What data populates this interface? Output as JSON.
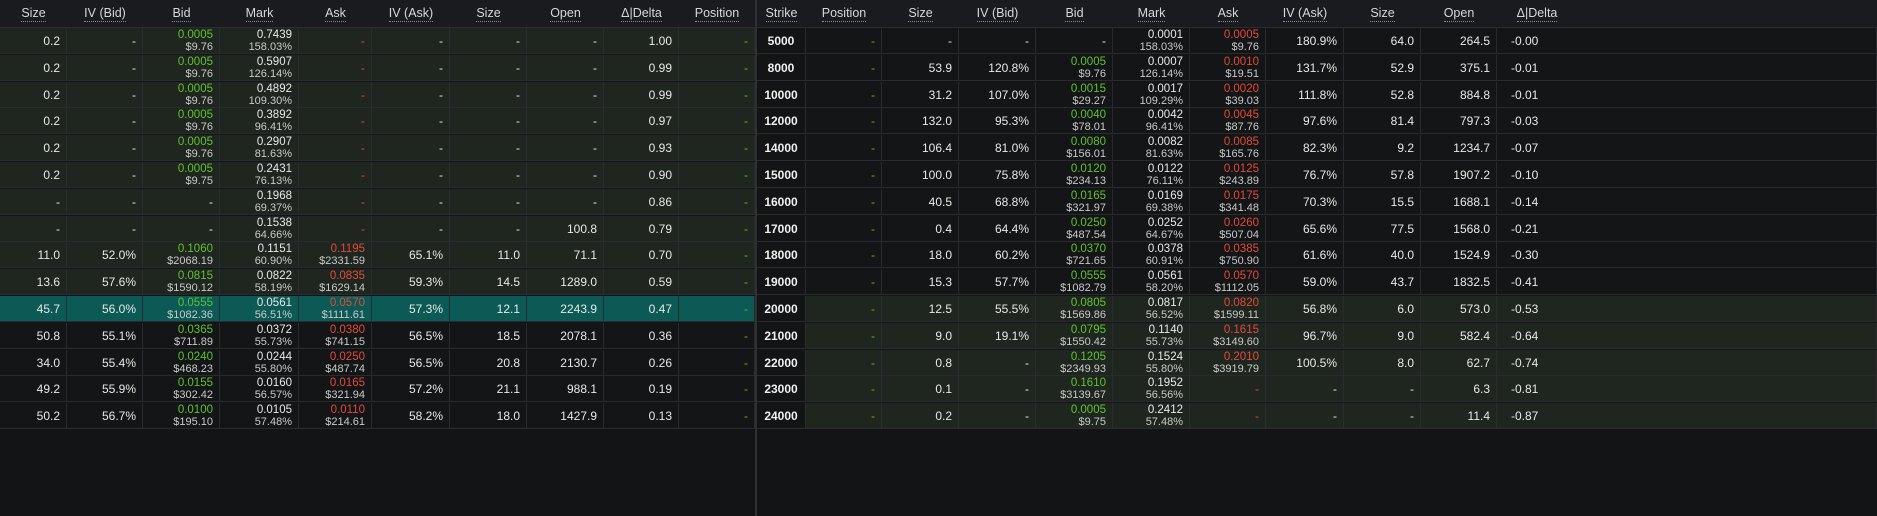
{
  "calls_headers": [
    "Size",
    "IV (Bid)",
    "Bid",
    "Mark",
    "Ask",
    "IV (Ask)",
    "Size",
    "Open",
    "Δ|Delta",
    "Position"
  ],
  "strike_header": "Strike",
  "puts_headers": [
    "Position",
    "Size",
    "IV (Bid)",
    "Bid",
    "Mark",
    "Ask",
    "IV (Ask)",
    "Size",
    "Open",
    "Δ|Delta"
  ],
  "rows": [
    {
      "strike": "5000",
      "calls": {
        "size": "0.2",
        "iv_bid": "-",
        "bid": [
          "0.0005",
          "$9.76"
        ],
        "mark": [
          "0.7439",
          "158.03%"
        ],
        "ask": [
          "-",
          ""
        ],
        "iv_ask": "-",
        "size2": "-",
        "open": "-",
        "delta": "1.00",
        "position": "-"
      },
      "puts": {
        "position": "-",
        "size": "-",
        "iv_bid": "-",
        "bid": [
          "-",
          ""
        ],
        "mark": [
          "0.0001",
          "158.03%"
        ],
        "ask": [
          "0.0005",
          "$9.76"
        ],
        "iv_ask": "180.9%",
        "size2": "64.0",
        "open": "264.5",
        "delta": "-0.00"
      }
    },
    {
      "strike": "8000",
      "calls": {
        "size": "0.2",
        "iv_bid": "-",
        "bid": [
          "0.0005",
          "$9.76"
        ],
        "mark": [
          "0.5907",
          "126.14%"
        ],
        "ask": [
          "-",
          ""
        ],
        "iv_ask": "-",
        "size2": "-",
        "open": "-",
        "delta": "0.99",
        "position": "-"
      },
      "puts": {
        "position": "-",
        "size": "53.9",
        "iv_bid": "120.8%",
        "bid": [
          "0.0005",
          "$9.76"
        ],
        "mark": [
          "0.0007",
          "126.14%"
        ],
        "ask": [
          "0.0010",
          "$19.51"
        ],
        "iv_ask": "131.7%",
        "size2": "52.9",
        "open": "375.1",
        "delta": "-0.01"
      }
    },
    {
      "strike": "10000",
      "calls": {
        "size": "0.2",
        "iv_bid": "-",
        "bid": [
          "0.0005",
          "$9.76"
        ],
        "mark": [
          "0.4892",
          "109.30%"
        ],
        "ask": [
          "-",
          ""
        ],
        "iv_ask": "-",
        "size2": "-",
        "open": "-",
        "delta": "0.99",
        "position": "-"
      },
      "puts": {
        "position": "-",
        "size": "31.2",
        "iv_bid": "107.0%",
        "bid": [
          "0.0015",
          "$29.27"
        ],
        "mark": [
          "0.0017",
          "109.29%"
        ],
        "ask": [
          "0.0020",
          "$39.03"
        ],
        "iv_ask": "111.8%",
        "size2": "52.8",
        "open": "884.8",
        "delta": "-0.01"
      }
    },
    {
      "strike": "12000",
      "calls": {
        "size": "0.2",
        "iv_bid": "-",
        "bid": [
          "0.0005",
          "$9.76"
        ],
        "mark": [
          "0.3892",
          "96.41%"
        ],
        "ask": [
          "-",
          ""
        ],
        "iv_ask": "-",
        "size2": "-",
        "open": "-",
        "delta": "0.97",
        "position": "-"
      },
      "puts": {
        "position": "-",
        "size": "132.0",
        "iv_bid": "95.3%",
        "bid": [
          "0.0040",
          "$78.01"
        ],
        "mark": [
          "0.0042",
          "96.41%"
        ],
        "ask": [
          "0.0045",
          "$87.76"
        ],
        "iv_ask": "97.6%",
        "size2": "81.4",
        "open": "797.3",
        "delta": "-0.03"
      }
    },
    {
      "strike": "14000",
      "calls": {
        "size": "0.2",
        "iv_bid": "-",
        "bid": [
          "0.0005",
          "$9.76"
        ],
        "mark": [
          "0.2907",
          "81.63%"
        ],
        "ask": [
          "-",
          ""
        ],
        "iv_ask": "-",
        "size2": "-",
        "open": "-",
        "delta": "0.93",
        "position": "-"
      },
      "puts": {
        "position": "-",
        "size": "106.4",
        "iv_bid": "81.0%",
        "bid": [
          "0.0080",
          "$156.01"
        ],
        "mark": [
          "0.0082",
          "81.63%"
        ],
        "ask": [
          "0.0085",
          "$165.76"
        ],
        "iv_ask": "82.3%",
        "size2": "9.2",
        "open": "1234.7",
        "delta": "-0.07"
      }
    },
    {
      "strike": "15000",
      "calls": {
        "size": "0.2",
        "iv_bid": "-",
        "bid": [
          "0.0005",
          "$9.75"
        ],
        "mark": [
          "0.2431",
          "76.13%"
        ],
        "ask": [
          "-",
          ""
        ],
        "iv_ask": "-",
        "size2": "-",
        "open": "-",
        "delta": "0.90",
        "position": "-"
      },
      "puts": {
        "position": "-",
        "size": "100.0",
        "iv_bid": "75.8%",
        "bid": [
          "0.0120",
          "$234.13"
        ],
        "mark": [
          "0.0122",
          "76.11%"
        ],
        "ask": [
          "0.0125",
          "$243.89"
        ],
        "iv_ask": "76.7%",
        "size2": "57.8",
        "open": "1907.2",
        "delta": "-0.10"
      }
    },
    {
      "strike": "16000",
      "calls": {
        "size": "-",
        "iv_bid": "-",
        "bid": [
          "-",
          ""
        ],
        "mark": [
          "0.1968",
          "69.37%"
        ],
        "ask": [
          "-",
          ""
        ],
        "iv_ask": "-",
        "size2": "-",
        "open": "-",
        "delta": "0.86",
        "position": "-"
      },
      "puts": {
        "position": "-",
        "size": "40.5",
        "iv_bid": "68.8%",
        "bid": [
          "0.0165",
          "$321.97"
        ],
        "mark": [
          "0.0169",
          "69.38%"
        ],
        "ask": [
          "0.0175",
          "$341.48"
        ],
        "iv_ask": "70.3%",
        "size2": "15.5",
        "open": "1688.1",
        "delta": "-0.14"
      }
    },
    {
      "strike": "17000",
      "calls": {
        "size": "-",
        "iv_bid": "-",
        "bid": [
          "-",
          ""
        ],
        "mark": [
          "0.1538",
          "64.66%"
        ],
        "ask": [
          "-",
          ""
        ],
        "iv_ask": "-",
        "size2": "-",
        "open": "100.8",
        "delta": "0.79",
        "position": "-"
      },
      "puts": {
        "position": "-",
        "size": "0.4",
        "iv_bid": "64.4%",
        "bid": [
          "0.0250",
          "$487.54"
        ],
        "mark": [
          "0.0252",
          "64.67%"
        ],
        "ask": [
          "0.0260",
          "$507.04"
        ],
        "iv_ask": "65.6%",
        "size2": "77.5",
        "open": "1568.0",
        "delta": "-0.21"
      }
    },
    {
      "strike": "18000",
      "calls": {
        "size": "11.0",
        "iv_bid": "52.0%",
        "bid": [
          "0.1060",
          "$2068.19"
        ],
        "mark": [
          "0.1151",
          "60.90%"
        ],
        "ask": [
          "0.1195",
          "$2331.59"
        ],
        "iv_ask": "65.1%",
        "size2": "11.0",
        "open": "71.1",
        "delta": "0.70",
        "position": "-"
      },
      "puts": {
        "position": "-",
        "size": "18.0",
        "iv_bid": "60.2%",
        "bid": [
          "0.0370",
          "$721.65"
        ],
        "mark": [
          "0.0378",
          "60.91%"
        ],
        "ask": [
          "0.0385",
          "$750.90"
        ],
        "iv_ask": "61.6%",
        "size2": "40.0",
        "open": "1524.9",
        "delta": "-0.30"
      }
    },
    {
      "strike": "19000",
      "calls": {
        "size": "13.6",
        "iv_bid": "57.6%",
        "bid": [
          "0.0815",
          "$1590.12"
        ],
        "mark": [
          "0.0822",
          "58.19%"
        ],
        "ask": [
          "0.0835",
          "$1629.14"
        ],
        "iv_ask": "59.3%",
        "size2": "14.5",
        "open": "1289.0",
        "delta": "0.59",
        "position": "-"
      },
      "puts": {
        "position": "-",
        "size": "15.3",
        "iv_bid": "57.7%",
        "bid": [
          "0.0555",
          "$1082.79"
        ],
        "mark": [
          "0.0561",
          "58.20%"
        ],
        "ask": [
          "0.0570",
          "$1112.05"
        ],
        "iv_ask": "59.0%",
        "size2": "43.7",
        "open": "1832.5",
        "delta": "-0.41"
      }
    },
    {
      "strike": "20000",
      "calls": {
        "size": "45.7",
        "iv_bid": "56.0%",
        "bid": [
          "0.0555",
          "$1082.36"
        ],
        "mark": [
          "0.0561",
          "56.51%"
        ],
        "ask": [
          "0.0570",
          "$1111.61"
        ],
        "iv_ask": "57.3%",
        "size2": "12.1",
        "open": "2243.9",
        "delta": "0.47",
        "position": "-"
      },
      "puts": {
        "position": "-",
        "size": "12.5",
        "iv_bid": "55.5%",
        "bid": [
          "0.0805",
          "$1569.86"
        ],
        "mark": [
          "0.0817",
          "56.52%"
        ],
        "ask": [
          "0.0820",
          "$1599.11"
        ],
        "iv_ask": "56.8%",
        "size2": "6.0",
        "open": "573.0",
        "delta": "-0.53"
      }
    },
    {
      "strike": "21000",
      "calls": {
        "size": "50.8",
        "iv_bid": "55.1%",
        "bid": [
          "0.0365",
          "$711.89"
        ],
        "mark": [
          "0.0372",
          "55.73%"
        ],
        "ask": [
          "0.0380",
          "$741.15"
        ],
        "iv_ask": "56.5%",
        "size2": "18.5",
        "open": "2078.1",
        "delta": "0.36",
        "position": "-"
      },
      "puts": {
        "position": "-",
        "size": "9.0",
        "iv_bid": "19.1%",
        "bid": [
          "0.0795",
          "$1550.42"
        ],
        "mark": [
          "0.1140",
          "55.73%"
        ],
        "ask": [
          "0.1615",
          "$3149.60"
        ],
        "iv_ask": "96.7%",
        "size2": "9.0",
        "open": "582.4",
        "delta": "-0.64"
      }
    },
    {
      "strike": "22000",
      "calls": {
        "size": "34.0",
        "iv_bid": "55.4%",
        "bid": [
          "0.0240",
          "$468.23"
        ],
        "mark": [
          "0.0244",
          "55.80%"
        ],
        "ask": [
          "0.0250",
          "$487.74"
        ],
        "iv_ask": "56.5%",
        "size2": "20.8",
        "open": "2130.7",
        "delta": "0.26",
        "position": "-"
      },
      "puts": {
        "position": "-",
        "size": "0.8",
        "iv_bid": "-",
        "bid": [
          "0.1205",
          "$2349.93"
        ],
        "mark": [
          "0.1524",
          "55.80%"
        ],
        "ask": [
          "0.2010",
          "$3919.79"
        ],
        "iv_ask": "100.5%",
        "size2": "8.0",
        "open": "62.7",
        "delta": "-0.74"
      }
    },
    {
      "strike": "23000",
      "calls": {
        "size": "49.2",
        "iv_bid": "55.9%",
        "bid": [
          "0.0155",
          "$302.42"
        ],
        "mark": [
          "0.0160",
          "56.57%"
        ],
        "ask": [
          "0.0165",
          "$321.94"
        ],
        "iv_ask": "57.2%",
        "size2": "21.1",
        "open": "988.1",
        "delta": "0.19",
        "position": "-"
      },
      "puts": {
        "position": "-",
        "size": "0.1",
        "iv_bid": "-",
        "bid": [
          "0.1610",
          "$3139.67"
        ],
        "mark": [
          "0.1952",
          "56.56%"
        ],
        "ask": [
          "-",
          ""
        ],
        "iv_ask": "-",
        "size2": "-",
        "open": "6.3",
        "delta": "-0.81"
      }
    },
    {
      "strike": "24000",
      "calls": {
        "size": "50.2",
        "iv_bid": "56.7%",
        "bid": [
          "0.0100",
          "$195.10"
        ],
        "mark": [
          "0.0105",
          "57.48%"
        ],
        "ask": [
          "0.0110",
          "$214.61"
        ],
        "iv_ask": "58.2%",
        "size2": "18.0",
        "open": "1427.9",
        "delta": "0.13",
        "position": "-"
      },
      "puts": {
        "position": "-",
        "size": "0.2",
        "iv_bid": "-",
        "bid": [
          "0.0005",
          "$9.75"
        ],
        "mark": [
          "0.2412",
          "57.48%"
        ],
        "ask": [
          "-",
          ""
        ],
        "iv_ask": "-",
        "size2": "-",
        "open": "11.4",
        "delta": "-0.87"
      }
    }
  ],
  "colors": {
    "bid_green": "#5ec232",
    "ask_red": "#e24a3b",
    "atm_row": "#0c5a55",
    "itm_bg": "#1f261f",
    "otm_bg": "#141516"
  }
}
